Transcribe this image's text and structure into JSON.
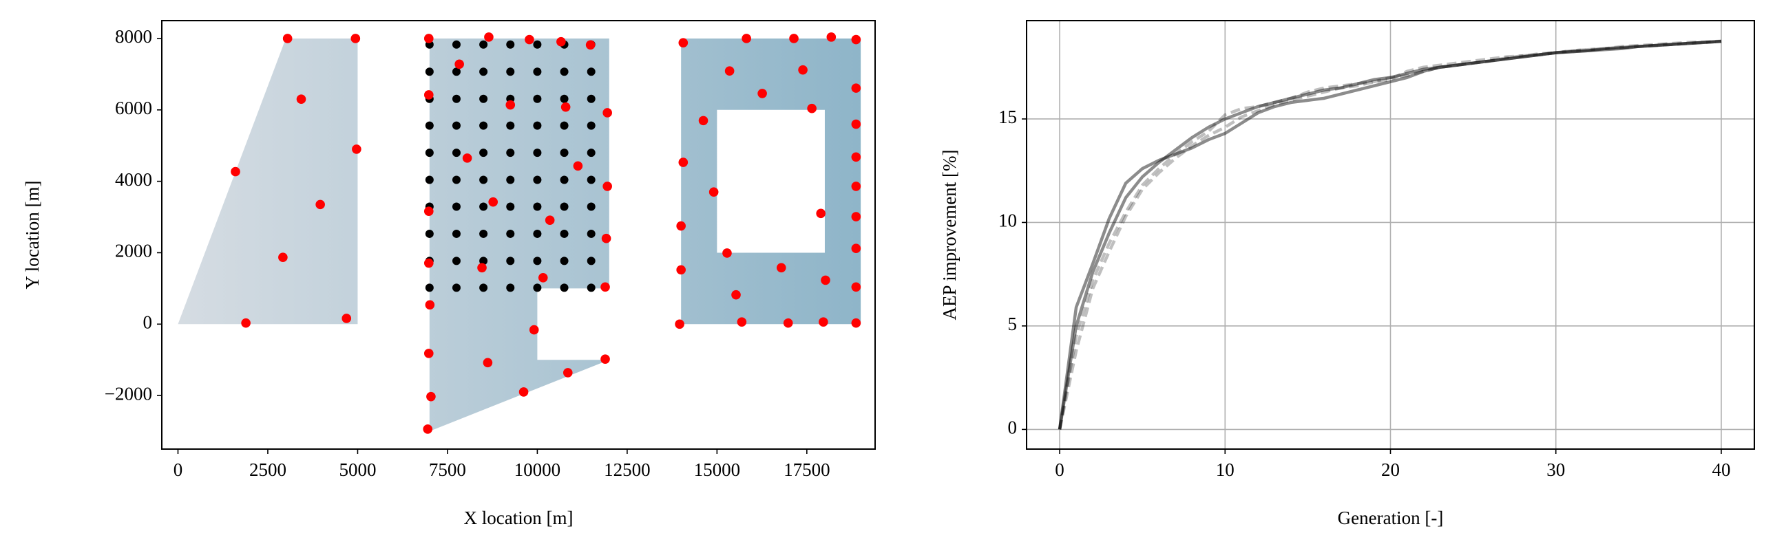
{
  "chart_data": [
    {
      "type": "scatter",
      "xlabel": "X location [m]",
      "ylabel": "Y location [m]",
      "xlim": [
        -450,
        19400
      ],
      "ylim": [
        -3500,
        8500
      ],
      "xticks": [
        0,
        2500,
        5000,
        7500,
        10000,
        12500,
        15000,
        17500
      ],
      "yticks": [
        {
          "value": -2000,
          "label": "−2000"
        },
        0,
        2000,
        4000,
        6000,
        8000
      ],
      "grid": false,
      "fill_gradient": [
        "#d7dde3",
        "#8db4c8"
      ],
      "regions": [
        {
          "x": [
            0,
            3000,
            5000,
            5000
          ],
          "y": [
            0,
            8000,
            8000,
            0
          ]
        },
        {
          "x": [
            7000,
            12000,
            12000,
            10000,
            10000,
            12000,
            7000
          ],
          "y": [
            8000,
            8000,
            1000,
            1000,
            -1000,
            -1000,
            -3000
          ]
        },
        {
          "x": [
            14000,
            19000,
            19000,
            14000
          ],
          "y": [
            0,
            0,
            8000,
            8000
          ],
          "hole": {
            "x": [
              15000,
              18000,
              18000,
              15000
            ],
            "y": [
              2000,
              2000,
              6000,
              6000
            ]
          }
        }
      ],
      "series": [
        {
          "color": "#000000",
          "x": [
            7000,
            7750,
            8500,
            9250,
            10000,
            10750,
            11500,
            7000,
            7750,
            8500,
            9250,
            10000,
            10750,
            11500,
            7000,
            7750,
            8500,
            9250,
            10000,
            10750,
            11500,
            7000,
            7750,
            8500,
            9250,
            10000,
            10750,
            11500,
            7000,
            7750,
            8500,
            9250,
            10000,
            10750,
            11500,
            7000,
            7750,
            8500,
            9250,
            10000,
            10750,
            11500,
            7000,
            7750,
            8500,
            9250,
            10000,
            10750,
            11500,
            7000,
            7750,
            8500,
            9250,
            10000,
            10750,
            11500,
            7000,
            7750,
            8500,
            9250,
            10000,
            10750,
            11500,
            7000,
            7750,
            8500,
            9250,
            10000,
            10750,
            11500
          ],
          "values": [
            7830,
            7830,
            7830,
            7830,
            7830,
            7830,
            7830,
            7070,
            7070,
            7070,
            7070,
            7070,
            7070,
            7070,
            6310,
            6310,
            6310,
            6310,
            6310,
            6310,
            6310,
            5560,
            5560,
            5560,
            5560,
            5560,
            5560,
            5560,
            4800,
            4800,
            4800,
            4800,
            4800,
            4800,
            4800,
            4040,
            4040,
            4040,
            4040,
            4040,
            4040,
            4040,
            3290,
            3290,
            3290,
            3290,
            3290,
            3290,
            3290,
            2530,
            2530,
            2530,
            2530,
            2530,
            2530,
            2530,
            1770,
            1770,
            1770,
            1770,
            1770,
            1770,
            1770,
            1020,
            1020,
            1020,
            1020,
            1020,
            1020,
            1020
          ]
        },
        {
          "color": "#ff0000",
          "x": [
            3050,
            4940,
            3430,
            4970,
            1600,
            3960,
            2920,
            4690,
            1890,
            6980,
            8650,
            9780,
            10660,
            11480,
            7830,
            6980,
            9250,
            10790,
            11950,
            8050,
            11130,
            11950,
            6980,
            8770,
            10350,
            11920,
            6980,
            8460,
            10160,
            11890,
            7010,
            9910,
            6980,
            8620,
            11890,
            10850,
            7040,
            9620,
            6950,
            14060,
            15820,
            17140,
            18180,
            18870,
            15350,
            17390,
            16260,
            18870,
            17640,
            14620,
            18870,
            14060,
            18870,
            14910,
            18870,
            17890,
            18870,
            14000,
            15280,
            18870,
            16790,
            14000,
            18020,
            18870,
            15530,
            13960,
            15690,
            16980,
            17960,
            18870
          ],
          "values": [
            8000,
            8000,
            6300,
            4900,
            4270,
            3350,
            1870,
            160,
            30,
            8000,
            8040,
            7970,
            7910,
            7820,
            7280,
            6420,
            6140,
            6080,
            5920,
            4650,
            4430,
            3860,
            3160,
            3420,
            2910,
            2400,
            1710,
            1580,
            1300,
            1040,
            540,
            -160,
            -820,
            -1080,
            -980,
            -1360,
            -2030,
            -1900,
            -2940,
            7880,
            8000,
            8000,
            8040,
            7970,
            7090,
            7120,
            6460,
            6610,
            6040,
            5700,
            5600,
            4530,
            4680,
            3700,
            3860,
            3100,
            3010,
            2750,
            1990,
            2120,
            1580,
            1520,
            1230,
            1040,
            820,
            0,
            60,
            30,
            60,
            30
          ]
        }
      ]
    },
    {
      "type": "line",
      "xlabel": "Generation [-]",
      "ylabel": "AEP improvement [%]",
      "xlim": [
        -2,
        42
      ],
      "ylim": [
        -0.95,
        19.75
      ],
      "xticks": [
        0,
        10,
        20,
        30,
        40
      ],
      "yticks": [
        0,
        5,
        10,
        15
      ],
      "grid": true,
      "x": [
        0,
        1,
        2,
        3,
        4,
        5,
        6,
        7,
        8,
        9,
        10,
        11,
        12,
        13,
        14,
        15,
        16,
        17,
        18,
        19,
        20,
        21,
        22,
        23,
        24,
        25,
        26,
        27,
        28,
        29,
        30,
        31,
        32,
        33,
        34,
        35,
        36,
        37,
        38,
        39,
        40
      ],
      "series": [
        {
          "color": "#000000",
          "opacity": 0.45,
          "dashed": false,
          "values": [
            0,
            5,
            7.6,
            9.5,
            11.2,
            12.2,
            12.9,
            13.5,
            14.1,
            14.6,
            15.0,
            15.3,
            15.6,
            15.8,
            16.0,
            16.2,
            16.4,
            16.5,
            16.7,
            16.9,
            17.0,
            17.2,
            17.4,
            17.5,
            17.6,
            17.7,
            17.8,
            17.9,
            18.0,
            18.1,
            18.2,
            18.25,
            18.3,
            18.4,
            18.45,
            18.5,
            18.55,
            18.6,
            18.65,
            18.7,
            18.75
          ]
        },
        {
          "color": "#000000",
          "opacity": 0.25,
          "dashed": true,
          "values": [
            0,
            3.8,
            6.8,
            8.6,
            10.3,
            11.6,
            12.4,
            13.1,
            13.7,
            14.2,
            14.6,
            15.1,
            15.4,
            15.7,
            15.9,
            16.1,
            16.3,
            16.5,
            16.6,
            16.8,
            16.9,
            17.3,
            17.5,
            17.6,
            17.7,
            17.8,
            17.9,
            18.0,
            18.05,
            18.1,
            18.2,
            18.3,
            18.35,
            18.4,
            18.45,
            18.5,
            18.55,
            18.6,
            18.65,
            18.7,
            18.75
          ]
        },
        {
          "color": "#000000",
          "opacity": 0.45,
          "dashed": false,
          "values": [
            0,
            5.9,
            8.0,
            10.2,
            11.9,
            12.6,
            13.0,
            13.3,
            13.6,
            14.0,
            14.3,
            14.8,
            15.3,
            15.6,
            15.8,
            15.9,
            16.0,
            16.2,
            16.4,
            16.6,
            16.8,
            17.0,
            17.3,
            17.5,
            17.6,
            17.7,
            17.8,
            17.9,
            18.0,
            18.1,
            18.2,
            18.25,
            18.3,
            18.35,
            18.4,
            18.5,
            18.55,
            18.6,
            18.65,
            18.7,
            18.75
          ]
        },
        {
          "color": "#000000",
          "opacity": 0.25,
          "dashed": true,
          "values": [
            0,
            4.5,
            7.2,
            9.0,
            10.5,
            11.8,
            12.6,
            13.3,
            13.9,
            14.4,
            15.2,
            15.5,
            15.6,
            15.8,
            16.0,
            16.3,
            16.5,
            16.6,
            16.7,
            16.8,
            17.0,
            17.1,
            17.3,
            17.5,
            17.6,
            17.7,
            17.8,
            17.95,
            18.05,
            18.15,
            18.2,
            18.3,
            18.35,
            18.4,
            18.5,
            18.55,
            18.6,
            18.65,
            18.7,
            18.72,
            18.76
          ]
        }
      ]
    }
  ]
}
